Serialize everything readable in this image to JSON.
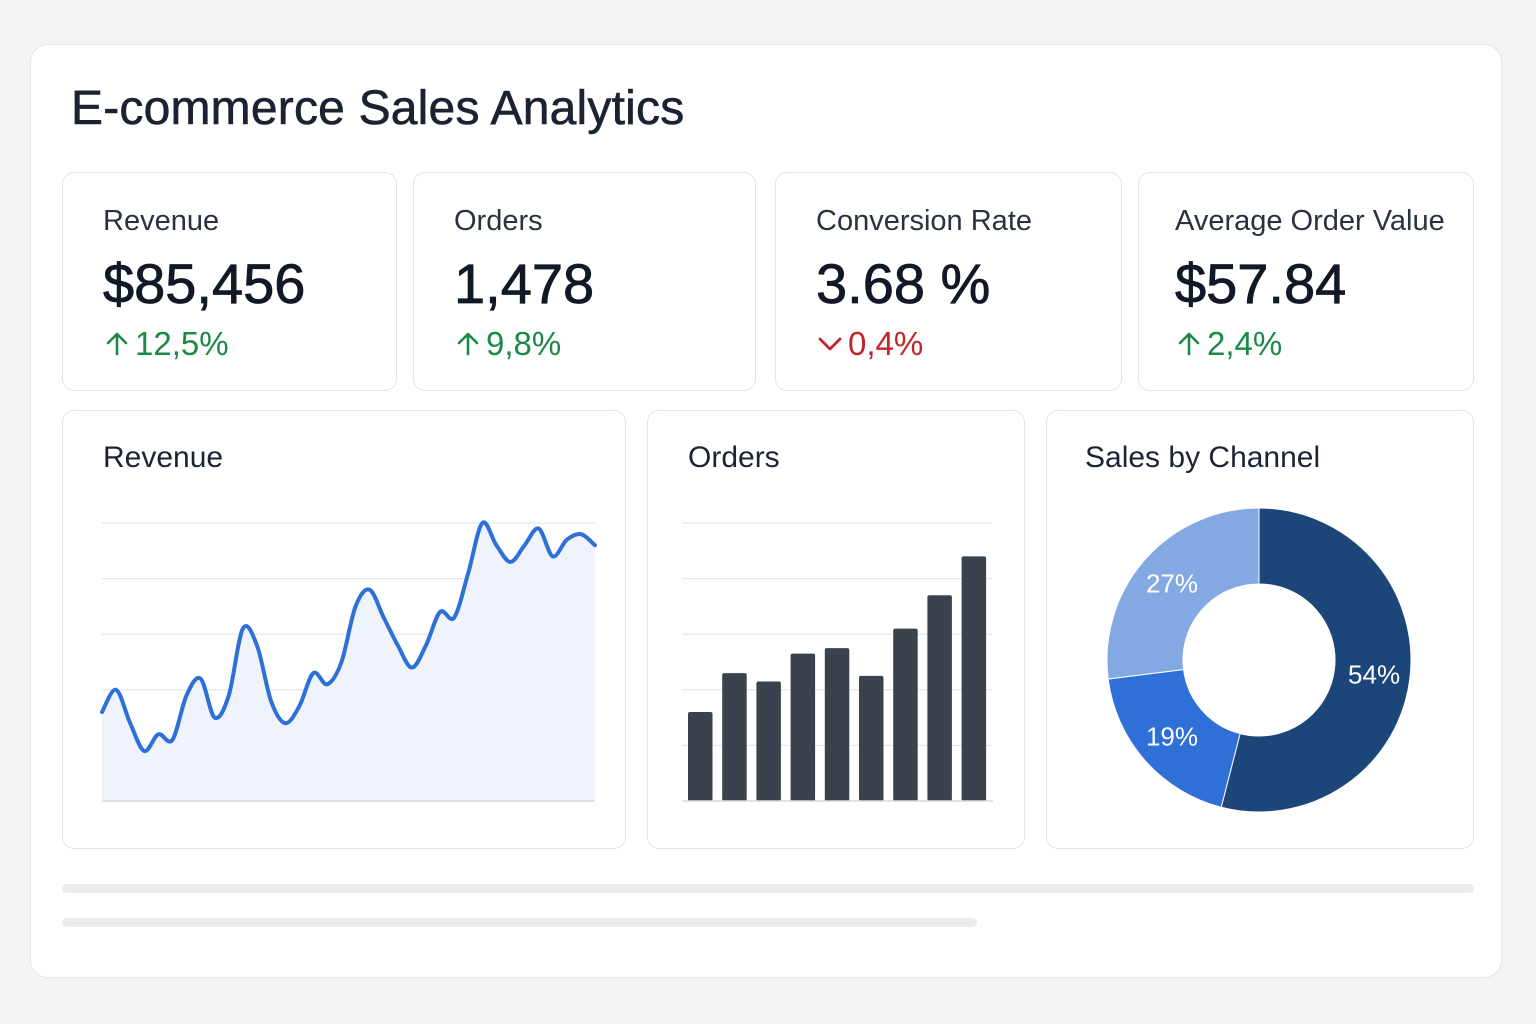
{
  "page": {
    "title": "E-commerce Sales Analytics"
  },
  "kpis": [
    {
      "label": "Revenue",
      "value": "$85,456",
      "delta": "12,5%",
      "direction": "up",
      "icon": "arrow-up-icon"
    },
    {
      "label": "Orders",
      "value": "1,478",
      "delta": "9,8%",
      "direction": "up",
      "icon": "arrow-up-icon"
    },
    {
      "label": "Conversion Rate",
      "value": "3.68 %",
      "delta": "0,4%",
      "direction": "down",
      "icon": "chevron-down-icon"
    },
    {
      "label": "Average Order Value",
      "value": "$57.84",
      "delta": "2,4%",
      "direction": "up",
      "icon": "arrow-up-icon"
    }
  ],
  "colors": {
    "up": "#1a8a46",
    "down": "#c0262b",
    "line": "#2f6fd8",
    "area": "#eef3fc",
    "bar": "#3a434d",
    "grid": "#e6e8ec",
    "donut": [
      "#1c4679",
      "#2f6fd8",
      "#84a9e2"
    ]
  },
  "chart_data": [
    {
      "type": "area",
      "title": "Revenue",
      "x": [
        1,
        2,
        3,
        4,
        5,
        6,
        7,
        8,
        9,
        10,
        11,
        12,
        13,
        14,
        15,
        16,
        17,
        18,
        19,
        20,
        21,
        22,
        23,
        24,
        25,
        26,
        27,
        28,
        29,
        30,
        31,
        32,
        33,
        34,
        35,
        36
      ],
      "values": [
        1.6,
        2.0,
        1.4,
        0.9,
        1.2,
        1.1,
        1.9,
        2.2,
        1.5,
        1.9,
        3.1,
        2.8,
        1.8,
        1.4,
        1.7,
        2.3,
        2.1,
        2.5,
        3.5,
        3.8,
        3.3,
        2.8,
        2.4,
        2.8,
        3.4,
        3.3,
        4.1,
        5.0,
        4.6,
        4.3,
        4.6,
        4.9,
        4.4,
        4.7,
        4.8,
        4.6
      ],
      "ylim": [
        0,
        5
      ],
      "grid": true
    },
    {
      "type": "bar",
      "title": "Orders",
      "categories": [
        "1",
        "2",
        "3",
        "4",
        "5",
        "6",
        "7",
        "8",
        "9"
      ],
      "values": [
        1.6,
        2.3,
        2.15,
        2.65,
        2.75,
        2.25,
        3.1,
        3.7,
        4.4
      ],
      "ylim": [
        0,
        5
      ],
      "grid": true
    },
    {
      "type": "pie",
      "title": "Sales by Channel",
      "slices": [
        {
          "label": "54%",
          "value": 54
        },
        {
          "label": "19%",
          "value": 19
        },
        {
          "label": "27%",
          "value": 27
        }
      ]
    }
  ]
}
